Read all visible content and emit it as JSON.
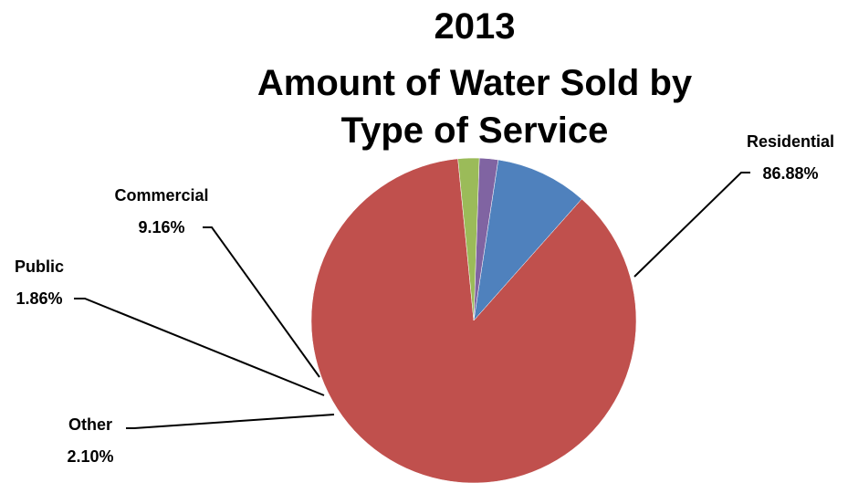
{
  "chart_data": {
    "type": "pie",
    "title": [
      "2013",
      "Amount of Water Sold by",
      "Type of Service"
    ],
    "start_angle_deg": 95.6,
    "direction": "counterclockwise",
    "slices": [
      {
        "name": "Residential",
        "value": 86.88,
        "label": "86.88%",
        "color": "#c0504d"
      },
      {
        "name": "Commercial",
        "value": 9.16,
        "label": "9.16%",
        "color": "#4f81bd"
      },
      {
        "name": "Public",
        "value": 1.86,
        "label": "1.86%",
        "color": "#8064a2"
      },
      {
        "name": "Other",
        "value": 2.1,
        "label": "2.10%",
        "color": "#9bbb59"
      }
    ]
  }
}
